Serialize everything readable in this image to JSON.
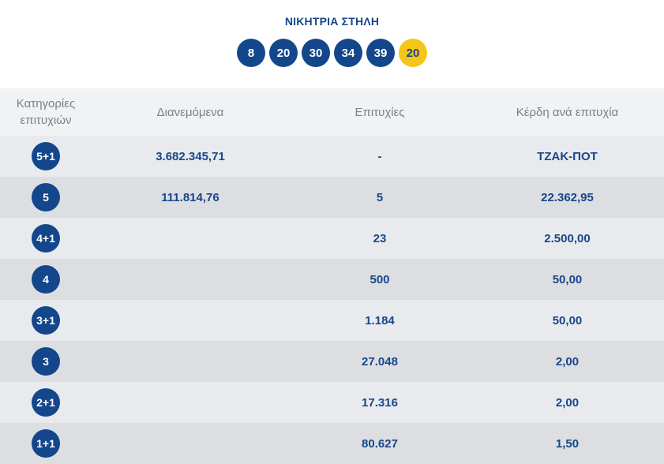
{
  "header": {
    "title": "ΝΙΚΗΤΡΙΑ ΣΤΗΛΗ",
    "numbers": [
      "8",
      "20",
      "30",
      "34",
      "39"
    ],
    "bonus": "20"
  },
  "table": {
    "columns": [
      "Κατηγορίες επιτυχιών",
      "Διανεμόμενα",
      "Επιτυχίες",
      "Κέρδη ανά επιτυχία"
    ],
    "rows": [
      {
        "category": "5+1",
        "distributed": "3.682.345,71",
        "winners": "-",
        "prize": "ΤΖΑΚ-ΠΟΤ"
      },
      {
        "category": "5",
        "distributed": "111.814,76",
        "winners": "5",
        "prize": "22.362,95"
      },
      {
        "category": "4+1",
        "distributed": "",
        "winners": "23",
        "prize": "2.500,00"
      },
      {
        "category": "4",
        "distributed": "",
        "winners": "500",
        "prize": "50,00"
      },
      {
        "category": "3+1",
        "distributed": "",
        "winners": "1.184",
        "prize": "50,00"
      },
      {
        "category": "3",
        "distributed": "",
        "winners": "27.048",
        "prize": "2,00"
      },
      {
        "category": "2+1",
        "distributed": "",
        "winners": "17.316",
        "prize": "2,00"
      },
      {
        "category": "1+1",
        "distributed": "",
        "winners": "80.627",
        "prize": "1,50"
      }
    ]
  },
  "colors": {
    "ball": "#14468c",
    "bonus_ball": "#f5c518",
    "text": "#17468a"
  }
}
